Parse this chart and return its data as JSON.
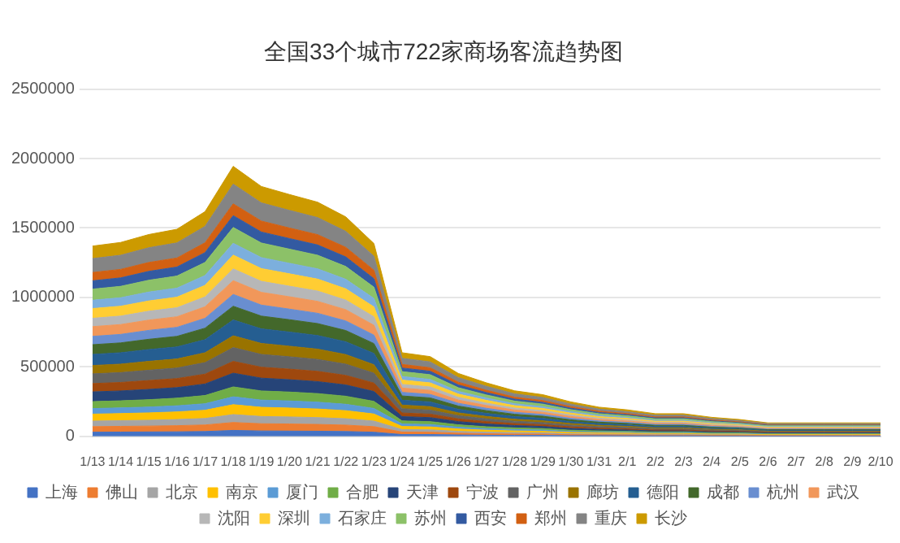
{
  "chart_data": {
    "type": "area",
    "title": "全国33个城市722家商场客流趋势图",
    "stacked": true,
    "grid": "y",
    "legend": "bottom",
    "marker": "none",
    "categories": [
      "1/13",
      "1/14",
      "1/15",
      "1/16",
      "1/17",
      "1/18",
      "1/19",
      "1/20",
      "1/21",
      "1/22",
      "1/23",
      "1/24",
      "1/25",
      "1/26",
      "1/27",
      "1/28",
      "1/29",
      "1/30",
      "1/31",
      "2/1",
      "2/2",
      "2/3",
      "2/4",
      "2/5",
      "2/6",
      "2/7",
      "2/8",
      "2/9",
      "2/10"
    ],
    "ylim": [
      0,
      2500000
    ],
    "yticks": [
      0,
      500000,
      1000000,
      1500000,
      2000000,
      2500000
    ],
    "series": [
      {
        "name": "上海",
        "color": "#4472c4",
        "values": [
          30000,
          31000,
          32000,
          33000,
          35000,
          43000,
          39000,
          38000,
          37000,
          35000,
          30000,
          13000,
          13000,
          10000,
          8000,
          7000,
          7000,
          5000,
          5000,
          4000,
          4000,
          4000,
          3000,
          3000,
          2000,
          2000,
          2000,
          2000,
          2000
        ]
      },
      {
        "name": "佛山",
        "color": "#ed7d31",
        "values": [
          40000,
          41000,
          42000,
          44000,
          47000,
          57000,
          52000,
          51000,
          49000,
          46000,
          40000,
          18000,
          17000,
          13000,
          11000,
          10000,
          9000,
          7000,
          6000,
          6000,
          5000,
          5000,
          4000,
          4000,
          3000,
          3000,
          3000,
          3000,
          3000
        ]
      },
      {
        "name": "北京",
        "color": "#a5a5a5",
        "values": [
          40000,
          41000,
          42000,
          44000,
          47000,
          57000,
          52000,
          51000,
          49000,
          46000,
          40000,
          18000,
          17000,
          13000,
          11000,
          10000,
          9000,
          7000,
          6000,
          6000,
          5000,
          5000,
          4000,
          4000,
          3000,
          3000,
          3000,
          3000,
          3000
        ]
      },
      {
        "name": "南京",
        "color": "#ffc000",
        "values": [
          50000,
          51000,
          53000,
          55000,
          59000,
          71000,
          66000,
          64000,
          62000,
          58000,
          51000,
          22000,
          21000,
          17000,
          14000,
          12000,
          11000,
          9000,
          8000,
          7000,
          6000,
          6000,
          5000,
          5000,
          4000,
          4000,
          4000,
          4000,
          4000
        ]
      },
      {
        "name": "厦门",
        "color": "#5b9bd5",
        "values": [
          40000,
          41000,
          42000,
          44000,
          47000,
          57000,
          52000,
          51000,
          49000,
          46000,
          40000,
          18000,
          17000,
          13000,
          11000,
          10000,
          9000,
          7000,
          6000,
          6000,
          5000,
          5000,
          4000,
          4000,
          3000,
          3000,
          3000,
          3000,
          3000
        ]
      },
      {
        "name": "合肥",
        "color": "#70ad47",
        "values": [
          50000,
          51000,
          53000,
          55000,
          59000,
          71000,
          66000,
          64000,
          62000,
          58000,
          51000,
          22000,
          21000,
          17000,
          14000,
          12000,
          11000,
          9000,
          8000,
          7000,
          6000,
          6000,
          5000,
          5000,
          4000,
          4000,
          4000,
          4000,
          4000
        ]
      },
      {
        "name": "天津",
        "color": "#264478",
        "values": [
          70000,
          71000,
          74000,
          76000,
          83000,
          99000,
          92000,
          89000,
          86000,
          81000,
          71000,
          31000,
          29000,
          23000,
          20000,
          17000,
          15000,
          13000,
          11000,
          10000,
          8000,
          8000,
          7000,
          6000,
          5000,
          5000,
          5000,
          5000,
          5000
        ]
      },
      {
        "name": "宁波",
        "color": "#9e480e",
        "values": [
          60000,
          61000,
          64000,
          65000,
          71000,
          85000,
          79000,
          76000,
          74000,
          69000,
          61000,
          26000,
          25000,
          20000,
          17000,
          14000,
          13000,
          11000,
          9000,
          8000,
          7000,
          7000,
          6000,
          5000,
          4000,
          4000,
          4000,
          4000,
          4000
        ]
      },
      {
        "name": "广州",
        "color": "#636363",
        "values": [
          70000,
          71000,
          74000,
          76000,
          83000,
          99000,
          92000,
          89000,
          86000,
          81000,
          71000,
          31000,
          29000,
          23000,
          20000,
          17000,
          15000,
          13000,
          11000,
          10000,
          8000,
          8000,
          7000,
          6000,
          5000,
          5000,
          5000,
          5000,
          5000
        ]
      },
      {
        "name": "廊坊",
        "color": "#997300",
        "values": [
          60000,
          61000,
          64000,
          65000,
          71000,
          85000,
          79000,
          76000,
          74000,
          69000,
          61000,
          26000,
          25000,
          20000,
          17000,
          14000,
          13000,
          11000,
          9000,
          8000,
          7000,
          7000,
          6000,
          5000,
          4000,
          4000,
          4000,
          4000,
          4000
        ]
      },
      {
        "name": "德阳",
        "color": "#255e91",
        "values": [
          80000,
          82000,
          85000,
          87000,
          94000,
          114000,
          105000,
          102000,
          98000,
          92000,
          81000,
          35000,
          34000,
          26000,
          22000,
          19000,
          18000,
          14000,
          12000,
          11000,
          10000,
          10000,
          8000,
          7000,
          6000,
          6000,
          6000,
          6000,
          6000
        ]
      },
      {
        "name": "成都",
        "color": "#43682b",
        "values": [
          70000,
          71000,
          74000,
          76000,
          83000,
          99000,
          92000,
          89000,
          86000,
          81000,
          71000,
          31000,
          29000,
          23000,
          20000,
          17000,
          15000,
          13000,
          11000,
          10000,
          8000,
          8000,
          7000,
          6000,
          5000,
          5000,
          5000,
          5000,
          5000
        ]
      },
      {
        "name": "杭州",
        "color": "#698ed0",
        "values": [
          60000,
          61000,
          64000,
          65000,
          71000,
          85000,
          79000,
          76000,
          74000,
          69000,
          61000,
          26000,
          25000,
          20000,
          17000,
          14000,
          13000,
          11000,
          9000,
          8000,
          7000,
          7000,
          6000,
          5000,
          4000,
          4000,
          4000,
          4000,
          4000
        ]
      },
      {
        "name": "武汉",
        "color": "#f1975a",
        "values": [
          70000,
          71000,
          74000,
          76000,
          83000,
          99000,
          92000,
          89000,
          86000,
          81000,
          71000,
          31000,
          29000,
          23000,
          20000,
          17000,
          15000,
          13000,
          11000,
          10000,
          8000,
          8000,
          7000,
          6000,
          5000,
          5000,
          5000,
          5000,
          5000
        ]
      },
      {
        "name": "沈阳",
        "color": "#b7b7b7",
        "values": [
          60000,
          61000,
          64000,
          65000,
          71000,
          85000,
          79000,
          76000,
          74000,
          69000,
          61000,
          26000,
          25000,
          20000,
          17000,
          14000,
          13000,
          11000,
          9000,
          8000,
          7000,
          7000,
          6000,
          5000,
          4000,
          4000,
          4000,
          4000,
          4000
        ]
      },
      {
        "name": "深圳",
        "color": "#ffcd33",
        "values": [
          70000,
          71000,
          74000,
          76000,
          83000,
          99000,
          92000,
          89000,
          86000,
          81000,
          71000,
          31000,
          29000,
          23000,
          20000,
          17000,
          15000,
          13000,
          11000,
          10000,
          8000,
          8000,
          7000,
          6000,
          5000,
          5000,
          5000,
          5000,
          5000
        ]
      },
      {
        "name": "石家庄",
        "color": "#7cafdd",
        "values": [
          60000,
          61000,
          64000,
          65000,
          71000,
          85000,
          79000,
          76000,
          74000,
          69000,
          61000,
          26000,
          25000,
          20000,
          17000,
          14000,
          13000,
          11000,
          9000,
          8000,
          7000,
          7000,
          6000,
          5000,
          4000,
          4000,
          4000,
          4000,
          4000
        ]
      },
      {
        "name": "苏州",
        "color": "#8cc168",
        "values": [
          80000,
          82000,
          85000,
          87000,
          94000,
          114000,
          105000,
          102000,
          98000,
          92000,
          81000,
          35000,
          34000,
          26000,
          22000,
          19000,
          18000,
          14000,
          12000,
          11000,
          10000,
          10000,
          8000,
          7000,
          6000,
          6000,
          6000,
          6000,
          6000
        ]
      },
      {
        "name": "西安",
        "color": "#335aa1",
        "values": [
          60000,
          61000,
          64000,
          65000,
          71000,
          85000,
          79000,
          76000,
          74000,
          69000,
          61000,
          26000,
          25000,
          20000,
          17000,
          14000,
          13000,
          11000,
          9000,
          8000,
          7000,
          7000,
          6000,
          5000,
          4000,
          4000,
          4000,
          4000,
          4000
        ]
      },
      {
        "name": "郑州",
        "color": "#d26012",
        "values": [
          60000,
          61000,
          64000,
          65000,
          71000,
          85000,
          79000,
          76000,
          74000,
          69000,
          61000,
          26000,
          25000,
          20000,
          17000,
          14000,
          13000,
          11000,
          9000,
          8000,
          7000,
          7000,
          6000,
          5000,
          4000,
          4000,
          4000,
          4000,
          4000
        ]
      },
      {
        "name": "重庆",
        "color": "#848484",
        "values": [
          100000,
          102000,
          106000,
          109000,
          118000,
          142000,
          131000,
          127000,
          123000,
          115000,
          101000,
          44000,
          42000,
          33000,
          28000,
          24000,
          22000,
          18000,
          15000,
          14000,
          12000,
          12000,
          10000,
          9000,
          7000,
          7000,
          7000,
          7000,
          7000
        ]
      },
      {
        "name": "长沙",
        "color": "#cc9a00",
        "values": [
          90000,
          92000,
          95000,
          98000,
          106000,
          128000,
          118000,
          114000,
          111000,
          104000,
          91000,
          40000,
          38000,
          30000,
          25000,
          22000,
          20000,
          16000,
          14000,
          13000,
          11000,
          11000,
          9000,
          8000,
          6000,
          6000,
          6000,
          6000,
          6000
        ]
      }
    ]
  }
}
